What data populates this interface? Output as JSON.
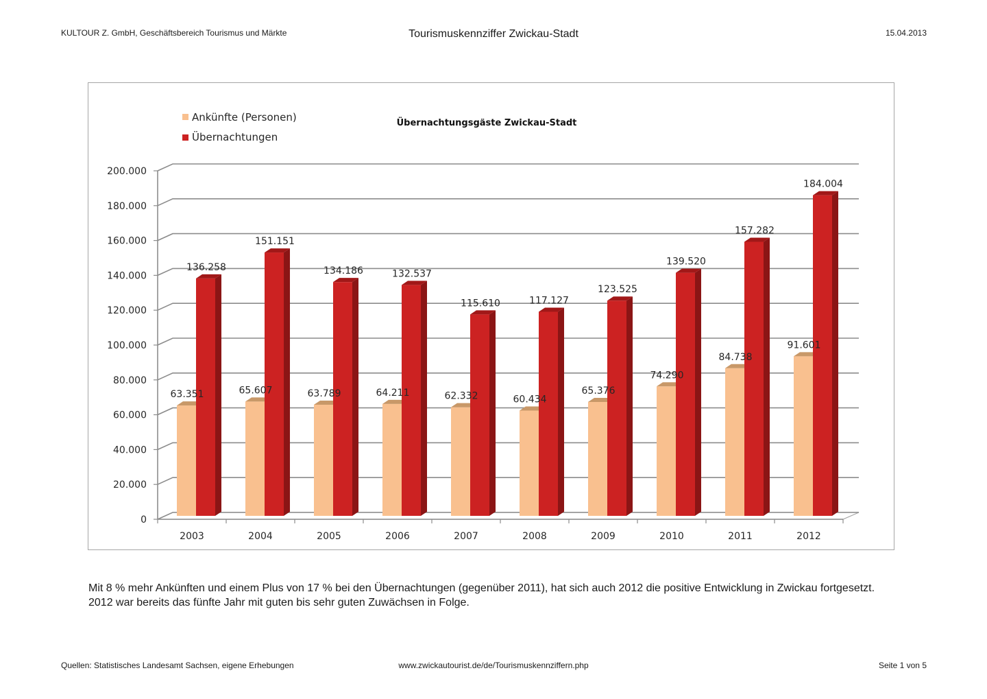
{
  "header": {
    "left": "KULTOUR Z. GmbH, Geschäftsbereich Tourismus und Märkte",
    "title": "Tourismuskennziffer Zwickau-Stadt",
    "date": "15.04.2013"
  },
  "chart_data": {
    "type": "bar",
    "style": "3d-clustered-column",
    "title": "Übernachtungsgäste Zwickau-Stadt",
    "xlabel": "",
    "ylabel": "",
    "ylim": [
      0,
      200000
    ],
    "yticks": [
      0,
      20000,
      40000,
      60000,
      80000,
      100000,
      120000,
      140000,
      160000,
      180000,
      200000
    ],
    "ytick_labels": [
      "0",
      "20.000",
      "40.000",
      "60.000",
      "80.000",
      "100.000",
      "120.000",
      "140.000",
      "160.000",
      "180.000",
      "200.000"
    ],
    "grid": true,
    "legend_position": "top-left",
    "categories": [
      "2003",
      "2004",
      "2005",
      "2006",
      "2007",
      "2008",
      "2009",
      "2010",
      "2011",
      "2012"
    ],
    "series": [
      {
        "name": "Ankünfte (Personen)",
        "color": "#f9c08f",
        "values": [
          63351,
          65607,
          63789,
          64211,
          62332,
          60434,
          65376,
          74290,
          84738,
          91601
        ],
        "labels": [
          "63.351",
          "65.607",
          "63.789",
          "64.211",
          "62.332",
          "60.434",
          "65.376",
          "74.290",
          "84.738",
          "91.601"
        ]
      },
      {
        "name": "Übernachtungen",
        "color": "#cc2222",
        "values": [
          136258,
          151151,
          134186,
          132537,
          115610,
          117127,
          123525,
          139520,
          157282,
          184004
        ],
        "labels": [
          "136.258",
          "151.151",
          "134.186",
          "132.537",
          "115.610",
          "117.127",
          "123.525",
          "139.520",
          "157.282",
          "184.004"
        ]
      }
    ]
  },
  "body_text": "Mit 8 % mehr Ankünften und einem Plus von 17 % bei den Übernachtungen (gegenüber 2011), hat sich auch 2012 die positive Entwicklung in Zwickau fortgesetzt. 2012 war bereits das fünfte Jahr mit guten bis sehr guten Zuwächsen in Folge.",
  "footer": {
    "source": "Quellen: Statistisches Landesamt Sachsen, eigene Erhebungen",
    "url": "www.zwickautourist.de/de/Tourismuskennziffern.php",
    "page": "Seite 1 von 5"
  }
}
